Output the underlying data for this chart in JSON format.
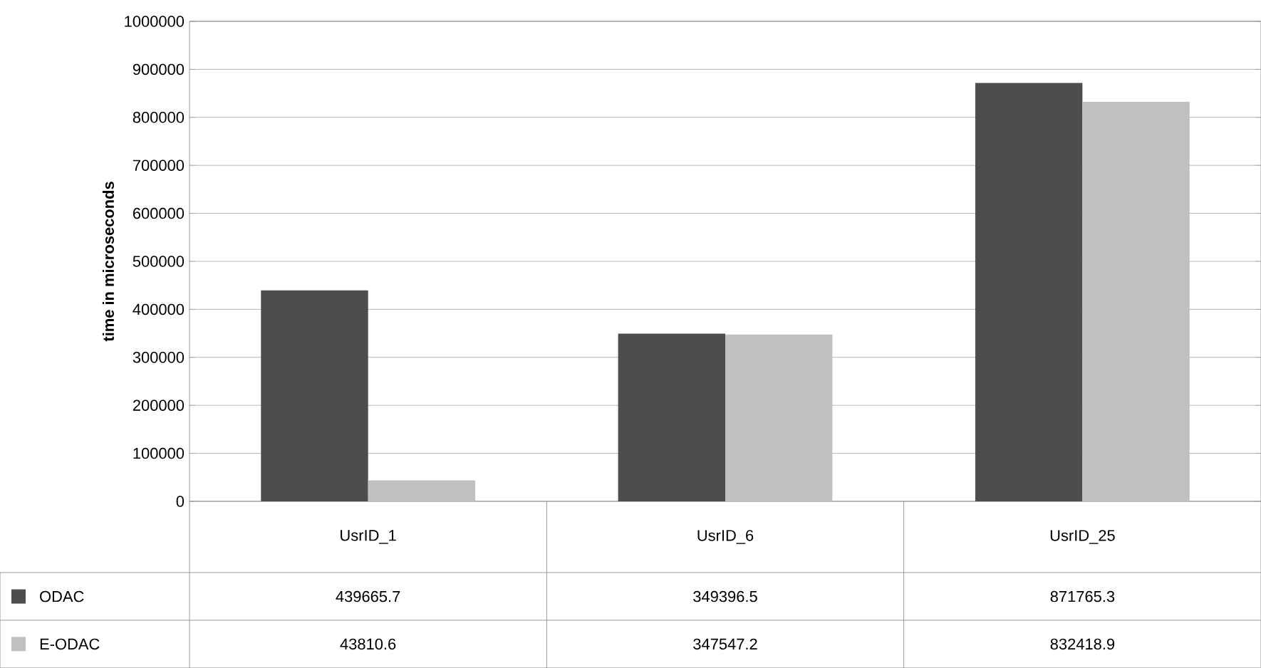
{
  "chart_data": {
    "type": "bar",
    "ylabel": "time in microseconds",
    "categories": [
      "UsrID_1",
      "UsrID_6",
      "UsrID_25"
    ],
    "series": [
      {
        "name": "ODAC",
        "color": "#4d4d4d",
        "values": [
          439665.7,
          349396.5,
          871765.3
        ]
      },
      {
        "name": "E-ODAC",
        "color": "#c0c0c0",
        "values": [
          43810.6,
          347547.2,
          832418.9
        ]
      }
    ],
    "ylim": [
      0,
      1000000
    ],
    "yticks": [
      0,
      100000,
      200000,
      300000,
      400000,
      500000,
      600000,
      700000,
      800000,
      900000,
      1000000
    ],
    "grid": "y",
    "legend": "bottom left",
    "data_labels": true
  }
}
